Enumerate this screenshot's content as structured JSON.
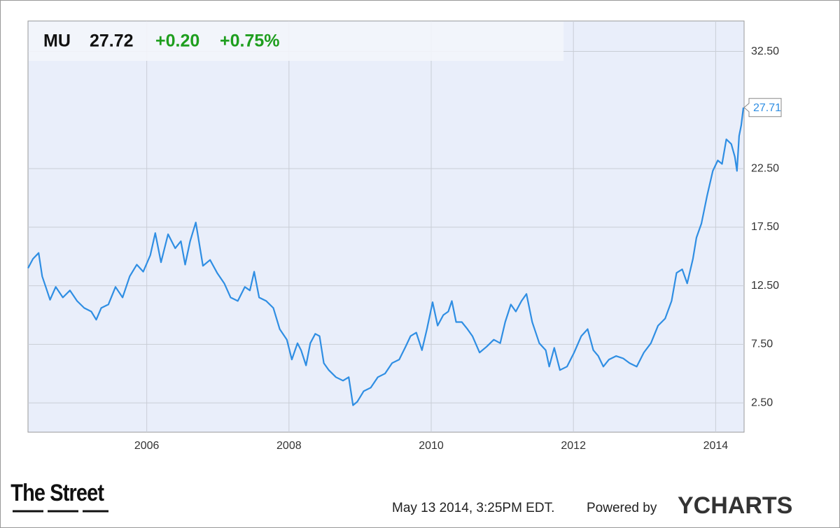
{
  "chart_data": {
    "type": "line",
    "price": 27.72,
    "change": "+0.20",
    "change_pct": "+0.75%",
    "end_label": 27.71,
    "x": [
      2004.33,
      2004.4,
      2004.48,
      2004.53,
      2004.58,
      2004.64,
      2004.72,
      2004.82,
      2004.92,
      2005.02,
      2005.12,
      2005.22,
      2005.29,
      2005.36,
      2005.46,
      2005.56,
      2005.66,
      2005.76,
      2005.86,
      2005.95,
      2006.05,
      2006.12,
      2006.2,
      2006.3,
      2006.4,
      2006.48,
      2006.54,
      2006.61,
      2006.69,
      2006.79,
      2006.89,
      2006.99,
      2007.09,
      2007.18,
      2007.28,
      2007.38,
      2007.45,
      2007.51,
      2007.58,
      2007.68,
      2007.78,
      2007.87,
      2007.97,
      2008.04,
      2008.12,
      2008.17,
      2008.24,
      2008.3,
      2008.37,
      2008.43,
      2008.49,
      2008.56,
      2008.66,
      2008.76,
      2008.84,
      2008.9,
      2008.96,
      2009.05,
      2009.15,
      2009.25,
      2009.35,
      2009.45,
      2009.55,
      2009.64,
      2009.71,
      2009.79,
      2009.87,
      2009.94,
      2010.02,
      2010.09,
      2010.17,
      2010.24,
      2010.29,
      2010.35,
      2010.43,
      2010.51,
      2010.58,
      2010.68,
      2010.78,
      2010.88,
      2010.97,
      2011.04,
      2011.12,
      2011.19,
      2011.27,
      2011.34,
      2011.42,
      2011.52,
      2011.61,
      2011.66,
      2011.73,
      2011.81,
      2011.91,
      2012.01,
      2012.11,
      2012.2,
      2012.28,
      2012.35,
      2012.42,
      2012.5,
      2012.6,
      2012.7,
      2012.79,
      2012.89,
      2012.99,
      2013.09,
      2013.19,
      2013.29,
      2013.38,
      2013.45,
      2013.53,
      2013.6,
      2013.68,
      2013.73,
      2013.8,
      2013.88,
      2013.96,
      2014.03,
      2014.09,
      2014.15,
      2014.22,
      2014.27,
      2014.3,
      2014.33,
      2014.36,
      2014.39
    ],
    "series": [
      {
        "name": "MU",
        "color": "#2f8ee3",
        "values": [
          14.0,
          14.8,
          15.3,
          13.3,
          12.4,
          11.3,
          12.4,
          11.5,
          12.1,
          11.2,
          10.6,
          10.3,
          9.6,
          10.6,
          10.9,
          12.4,
          11.5,
          13.3,
          14.3,
          13.7,
          15.1,
          17.0,
          14.5,
          16.9,
          15.7,
          16.3,
          14.3,
          16.3,
          17.9,
          14.2,
          14.7,
          13.6,
          12.7,
          11.5,
          11.2,
          12.4,
          12.1,
          13.7,
          11.5,
          11.2,
          10.6,
          8.8,
          7.9,
          6.2,
          7.6,
          7.0,
          5.7,
          7.6,
          8.4,
          8.2,
          5.9,
          5.3,
          4.7,
          4.4,
          4.7,
          2.3,
          2.6,
          3.5,
          3.8,
          4.7,
          5.0,
          5.9,
          6.2,
          7.3,
          8.2,
          8.5,
          7.0,
          8.8,
          11.1,
          9.1,
          10.0,
          10.3,
          11.2,
          9.4,
          9.4,
          8.8,
          8.2,
          6.8,
          7.3,
          7.9,
          7.6,
          9.4,
          10.9,
          10.3,
          11.2,
          11.8,
          9.4,
          7.6,
          7.0,
          5.6,
          7.2,
          5.3,
          5.6,
          6.8,
          8.2,
          8.8,
          7.0,
          6.5,
          5.6,
          6.2,
          6.5,
          6.3,
          5.9,
          5.6,
          6.8,
          7.6,
          9.1,
          9.7,
          11.2,
          13.6,
          13.9,
          12.7,
          14.8,
          16.6,
          17.8,
          20.2,
          22.3,
          23.2,
          22.9,
          25.0,
          24.6,
          23.5,
          22.3,
          25.3,
          26.2,
          27.71
        ]
      }
    ],
    "xlim": [
      2004.33,
      2014.4
    ],
    "xticks": [
      2006,
      2008,
      2010,
      2012,
      2014
    ],
    "ylim": [
      0,
      35.1
    ],
    "yticks": [
      {
        "value": 2.5,
        "label": "2.50"
      },
      {
        "value": 7.5,
        "label": "7.50"
      },
      {
        "value": 12.5,
        "label": "12.50"
      },
      {
        "value": 17.5,
        "label": "17.50"
      },
      {
        "value": 22.5,
        "label": "22.50"
      },
      {
        "value": 32.5,
        "label": "32.50"
      }
    ],
    "grid": true
  },
  "footer": {
    "brand": "The Street",
    "timestamp": "May 13 2014, 3:25PM EDT.",
    "powered_by": "Powered by",
    "provider": "YCHARTS"
  }
}
